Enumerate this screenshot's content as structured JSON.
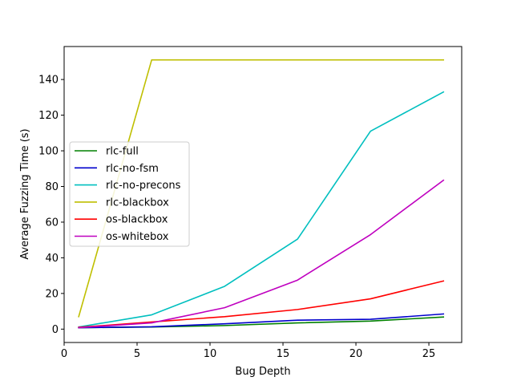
{
  "chart_data": {
    "type": "line",
    "title": "",
    "xlabel": "Bug Depth",
    "ylabel": "Average Fuzzing Time (s)",
    "xlim": [
      0,
      27.25
    ],
    "ylim": [
      -7.5,
      158.5
    ],
    "xticks": [
      0,
      5,
      10,
      15,
      20,
      25
    ],
    "yticks": [
      0,
      20,
      40,
      60,
      80,
      100,
      120,
      140
    ],
    "x": [
      1,
      6,
      11,
      16,
      21,
      26
    ],
    "legend_position": "center-left",
    "grid": false,
    "series": [
      {
        "name": "rlc-full",
        "color": "#008000",
        "values": [
          0.8,
          1.2,
          2.0,
          3.5,
          4.5,
          6.8
        ]
      },
      {
        "name": "rlc-no-fsm",
        "color": "#0000cc",
        "values": [
          0.8,
          1.3,
          3.0,
          5.0,
          5.5,
          8.5
        ]
      },
      {
        "name": "rlc-no-precons",
        "color": "#00bfbf",
        "values": [
          1.2,
          8.0,
          24.0,
          50.5,
          111.0,
          133.0
        ]
      },
      {
        "name": "rlc-blackbox",
        "color": "#bfbf00",
        "values": [
          7.0,
          151.0,
          151.0,
          151.0,
          151.0,
          151.0
        ]
      },
      {
        "name": "os-blackbox",
        "color": "#ff0000",
        "values": [
          1.0,
          4.0,
          7.0,
          11.0,
          17.0,
          27.0
        ]
      },
      {
        "name": "os-whitebox",
        "color": "#bf00bf",
        "values": [
          0.8,
          3.5,
          12.0,
          27.5,
          53.0,
          83.5
        ]
      }
    ]
  }
}
